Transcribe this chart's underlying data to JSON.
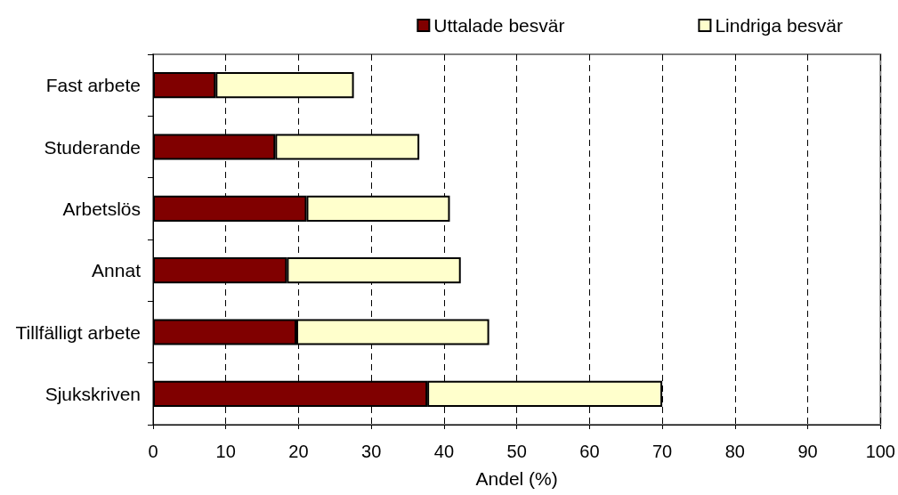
{
  "chart_data": {
    "type": "bar",
    "orientation": "horizontal",
    "stacked": true,
    "categories": [
      "Fast arbete",
      "Studerande",
      "Arbetslös",
      "Annat",
      "Tillfälligt arbete",
      "Sjukskriven"
    ],
    "series": [
      {
        "name": "Uttalade besvär",
        "color": "#800000",
        "values": [
          8.6,
          16.8,
          21.1,
          18.4,
          19.7,
          37.7
        ]
      },
      {
        "name": "Lindriga besvär",
        "color": "#ffffcc",
        "values": [
          19.0,
          19.8,
          19.7,
          23.9,
          26.5,
          32.3
        ]
      }
    ],
    "xlabel": "Andel (%)",
    "xlim": [
      0,
      100
    ],
    "xticks": [
      0,
      10,
      20,
      30,
      40,
      50,
      60,
      70,
      80,
      90,
      100
    ],
    "grid": "x",
    "legend": "top right"
  }
}
